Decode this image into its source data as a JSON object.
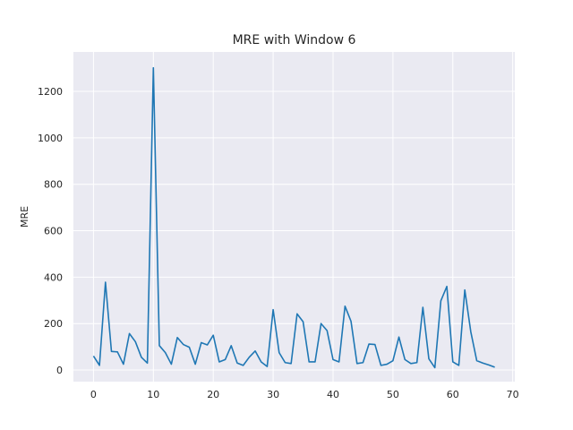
{
  "chart_data": {
    "type": "line",
    "title": "MRE with Window 6",
    "xlabel": "",
    "ylabel": "MRE",
    "xlim": [
      -3.35,
      70.35
    ],
    "ylim": [
      -50,
      1370
    ],
    "xticks": [
      0,
      10,
      20,
      30,
      40,
      50,
      60,
      70
    ],
    "yticks": [
      0,
      200,
      400,
      600,
      800,
      1000,
      1200
    ],
    "grid": true,
    "series_color": "#1f77b4",
    "background_color": "#eaeaf2",
    "x": [
      0,
      1,
      2,
      3,
      4,
      5,
      6,
      7,
      8,
      9,
      10,
      11,
      12,
      13,
      14,
      15,
      16,
      17,
      18,
      19,
      20,
      21,
      22,
      23,
      24,
      25,
      26,
      27,
      28,
      29,
      30,
      31,
      32,
      33,
      34,
      35,
      36,
      37,
      38,
      39,
      40,
      41,
      42,
      43,
      44,
      45,
      46,
      47,
      48,
      49,
      50,
      51,
      52,
      53,
      54,
      55,
      56,
      57,
      58,
      59,
      60,
      61,
      62,
      63,
      64,
      65,
      66,
      67
    ],
    "y": [
      60,
      20,
      378,
      80,
      78,
      25,
      157,
      122,
      55,
      30,
      1302,
      105,
      75,
      25,
      140,
      110,
      98,
      25,
      118,
      108,
      150,
      35,
      45,
      105,
      30,
      20,
      55,
      82,
      35,
      15,
      260,
      75,
      32,
      28,
      242,
      208,
      35,
      35,
      200,
      170,
      45,
      35,
      275,
      210,
      28,
      32,
      112,
      110,
      20,
      25,
      40,
      142,
      45,
      28,
      32,
      270,
      48,
      10,
      298,
      360,
      35,
      20,
      345,
      165,
      40,
      30,
      22,
      12
    ]
  }
}
